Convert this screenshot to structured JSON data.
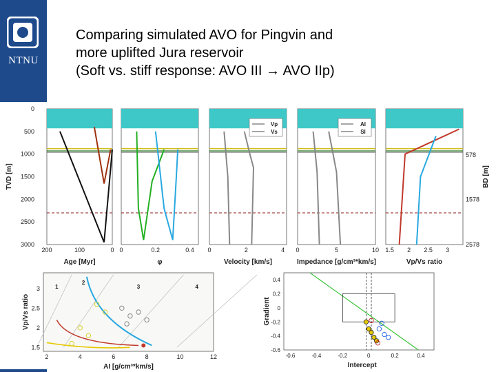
{
  "branding": {
    "logo_text": "NTNU"
  },
  "slide": {
    "title_lines": [
      "Comparing simulated AVO for Pingvin and",
      "more uplifted Jura reservoir",
      "(Soft vs. stiff response: AVO III → AVO IIp)"
    ]
  },
  "colors": {
    "brand": "#1e4a8c",
    "band": "#3ec8c8",
    "hz_green": "#2e7d2e",
    "hz_yellow": "#c8b400",
    "hz_dash": "#8b1a1a"
  },
  "chart_data": [
    {
      "type": "line",
      "name": "age-panel",
      "xlabel": "Age [Myr]",
      "ylabel": "TVD [m]",
      "xticks": [
        "200",
        "100",
        "0"
      ],
      "yticks": [
        "0",
        "500",
        "1000",
        "1500",
        "2000",
        "2500",
        "3000"
      ],
      "xlim": [
        200,
        0
      ],
      "ylim": [
        0,
        3000
      ],
      "series": [
        {
          "name": "black-1",
          "color": "#111",
          "x": [
            160,
            25
          ],
          "y": [
            500,
            2950
          ]
        },
        {
          "name": "black-2",
          "color": "#111",
          "x": [
            25,
            0
          ],
          "y": [
            2950,
            900
          ]
        },
        {
          "name": "brown",
          "color": "#a0300e",
          "x": [
            55,
            25,
            5
          ],
          "y": [
            400,
            1650,
            900
          ]
        }
      ]
    },
    {
      "type": "line",
      "name": "porosity-panel",
      "xlabel": "φ",
      "xticks": [
        "0",
        "0.2",
        "0.4"
      ],
      "xlim": [
        0,
        0.45
      ],
      "series": [
        {
          "name": "green",
          "color": "#22b022",
          "x": [
            0.09,
            0.1,
            0.13,
            0.18,
            0.25
          ],
          "y": [
            500,
            2200,
            2900,
            1600,
            900
          ]
        },
        {
          "name": "blue",
          "color": "#29a8e0",
          "x": [
            0.2,
            0.25,
            0.3,
            0.32,
            0.33
          ],
          "y": [
            500,
            2200,
            2900,
            1600,
            900
          ]
        }
      ]
    },
    {
      "type": "line",
      "name": "velocity-panel",
      "xlabel": "Velocity [km/s]",
      "xticks": [
        "0",
        "2",
        "4"
      ],
      "xlim": [
        0,
        4.2
      ],
      "legend": [
        "Vp",
        "Vs"
      ],
      "series": [
        {
          "name": "Vp",
          "color": "#888",
          "x": [
            1.9,
            2.2,
            2.4,
            2.3
          ],
          "y": [
            500,
            1000,
            1300,
            3000
          ]
        },
        {
          "name": "Vs",
          "color": "#888",
          "x": [
            0.8,
            1.0,
            1.1
          ],
          "y": [
            500,
            1500,
            3000
          ]
        }
      ]
    },
    {
      "type": "line",
      "name": "impedance-panel",
      "xlabel": "Impedance [g/cm³*km/s]",
      "xticks": [
        "0",
        "5",
        "10"
      ],
      "xlim": [
        0,
        10
      ],
      "legend": [
        "AI",
        "SI"
      ],
      "series": [
        {
          "name": "AI",
          "color": "#888",
          "x": [
            4,
            5,
            5.5
          ],
          "y": [
            500,
            1400,
            3000
          ]
        },
        {
          "name": "SI",
          "color": "#888",
          "x": [
            2,
            2.5,
            2.8
          ],
          "y": [
            500,
            1400,
            3000
          ]
        }
      ]
    },
    {
      "type": "line",
      "name": "vpvs-panel",
      "xlabel": "Vp/Vs ratio",
      "xticks": [
        "1.5",
        "2",
        "2.5",
        "3"
      ],
      "xlim": [
        1.4,
        3.4
      ],
      "y2label": "BD [m]",
      "y2ticks": [
        "578",
        "1578",
        "2578"
      ],
      "series": [
        {
          "name": "red",
          "color": "#c0392b",
          "x": [
            3.3,
            1.9,
            1.75
          ],
          "y": [
            450,
            1000,
            3000
          ]
        },
        {
          "name": "blue",
          "color": "#29a8e0",
          "x": [
            2.7,
            2.3,
            2.2
          ],
          "y": [
            600,
            1500,
            3000
          ]
        }
      ]
    },
    {
      "type": "scatter",
      "name": "rpt-crossplot",
      "xlabel": "AI [g/cm³*km/s]",
      "ylabel": "Vp/Vs ratio",
      "xticks": [
        "2",
        "4",
        "6",
        "8",
        "10",
        "12"
      ],
      "yticks": [
        "1.5",
        "2",
        "2.5",
        "3"
      ],
      "xlim": [
        1.8,
        12
      ],
      "ylim": [
        1.4,
        3.4
      ],
      "annotations": [
        "1",
        "2",
        "3",
        "4"
      ],
      "series": [
        {
          "name": "log",
          "color": "#888",
          "points": [
            [
              6.5,
              2.5
            ],
            [
              7,
              2.3
            ],
            [
              7.5,
              2.4
            ],
            [
              8,
              2.2
            ],
            [
              6.8,
              2.1
            ]
          ]
        },
        {
          "name": "yellow",
          "color": "#d4d430",
          "points": [
            [
              4,
              2
            ],
            [
              5,
              2.6
            ],
            [
              5.5,
              2.4
            ],
            [
              4.5,
              1.8
            ],
            [
              3.5,
              1.6
            ]
          ]
        }
      ]
    },
    {
      "type": "scatter",
      "name": "avo-crossplot",
      "xlabel": "Intercept",
      "ylabel": "Gradient",
      "xticks": [
        "-0.6",
        "-0.4",
        "-0.2",
        "0",
        "0.2",
        "0.4"
      ],
      "yticks": [
        "0.4",
        "0.2",
        "0",
        "-0.2",
        "-0.4",
        "-0.6"
      ],
      "xlim": [
        -0.65,
        0.5
      ],
      "ylim": [
        -0.6,
        0.5
      ],
      "series": [
        {
          "name": "yellow",
          "color": "#e6c800",
          "points": [
            [
              -0.02,
              -0.2
            ],
            [
              0,
              -0.3
            ],
            [
              0.02,
              -0.35
            ],
            [
              0.04,
              -0.42
            ],
            [
              0.06,
              -0.47
            ]
          ]
        },
        {
          "name": "blue",
          "color": "#2060e0",
          "points": [
            [
              0.08,
              -0.3
            ],
            [
              0.12,
              -0.38
            ],
            [
              0.15,
              -0.42
            ],
            [
              0.1,
              -0.22
            ]
          ]
        },
        {
          "name": "red",
          "color": "#cc2020",
          "points": [
            [
              0.02,
              -0.18
            ],
            [
              0.07,
              -0.5
            ]
          ]
        }
      ]
    }
  ]
}
